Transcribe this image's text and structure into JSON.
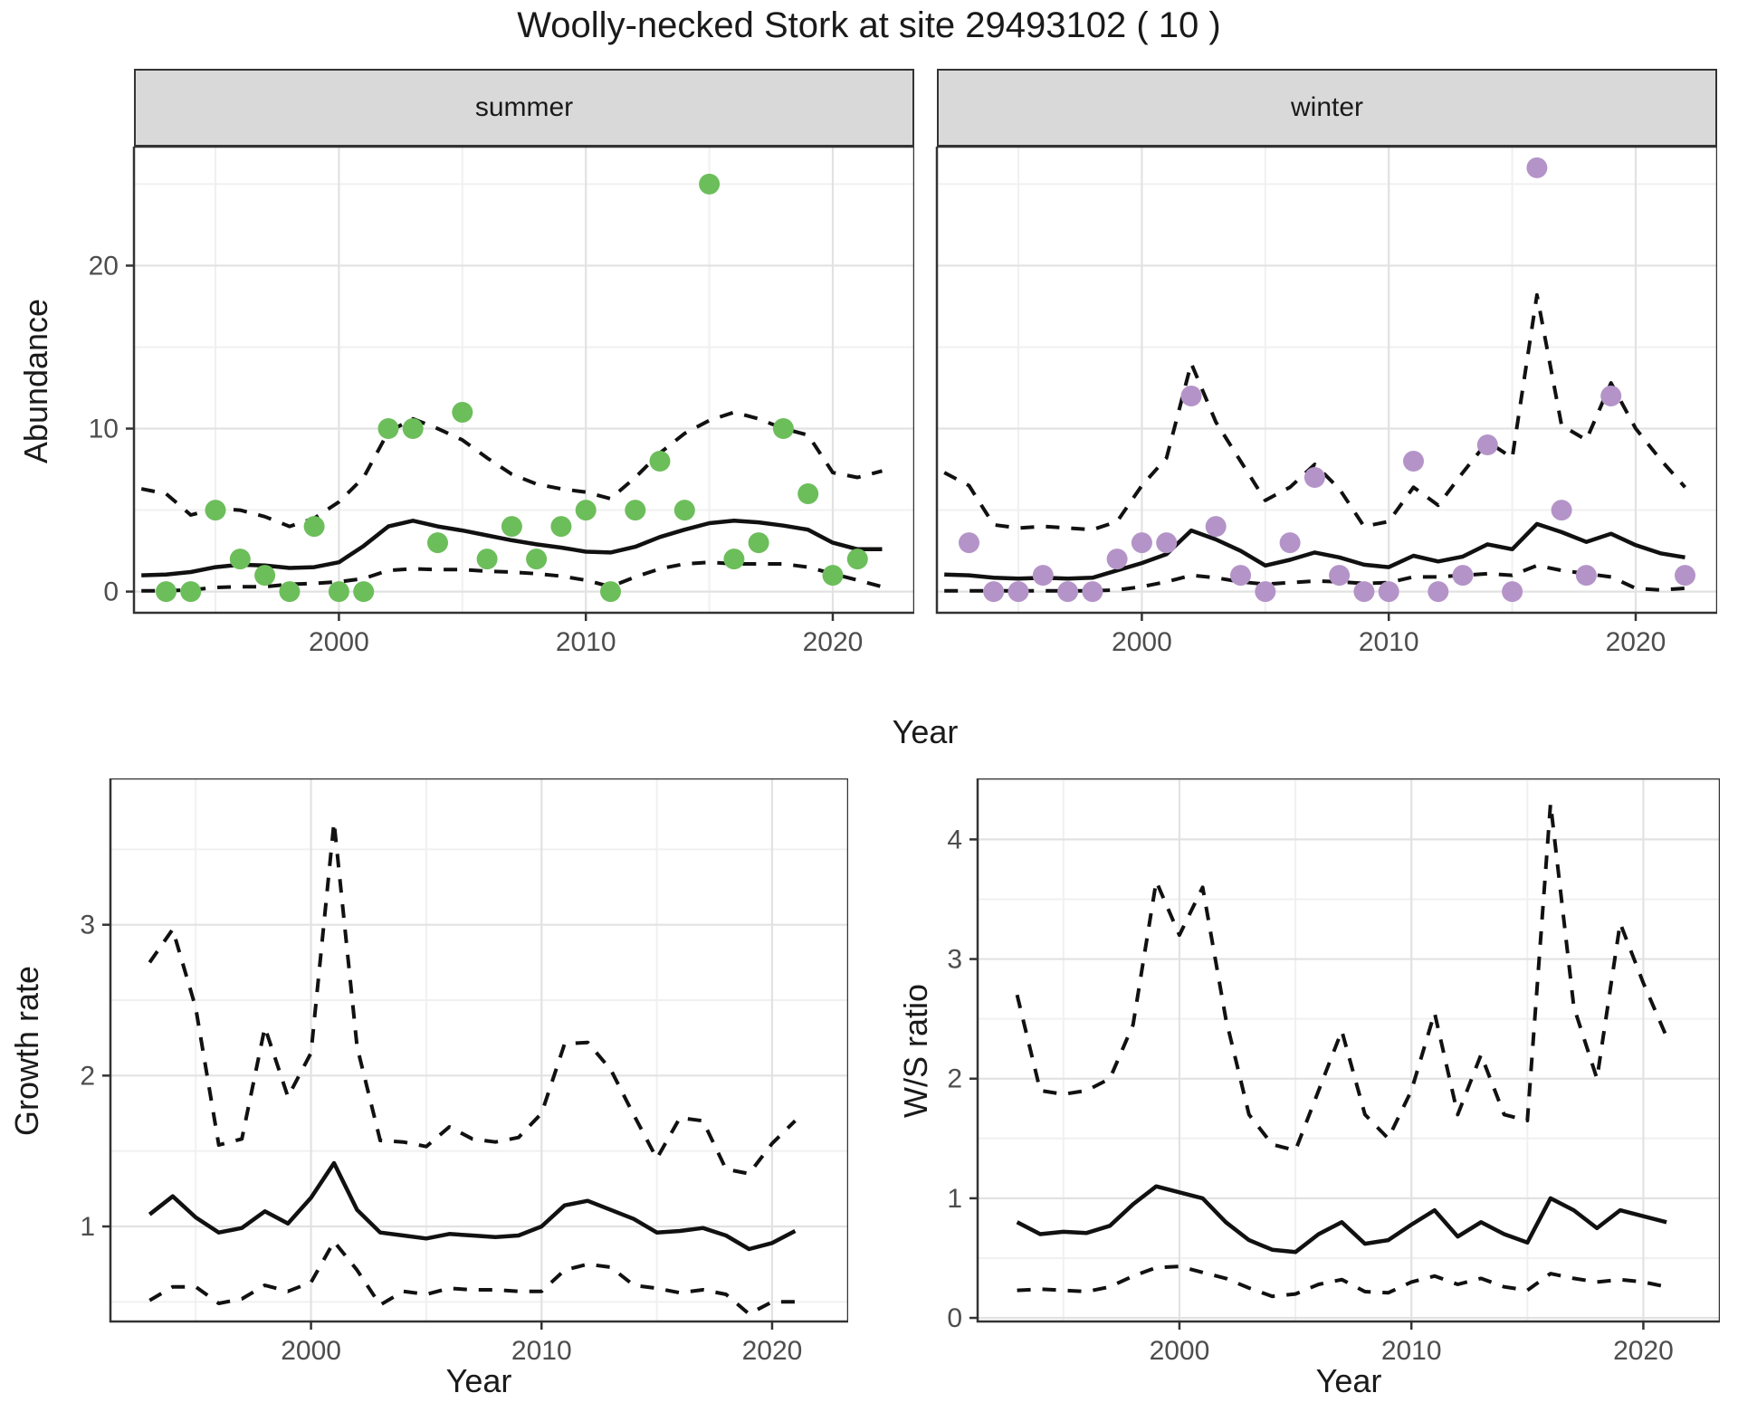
{
  "title": "Woolly-necked Stork at site 29493102 ( 10 )",
  "labels": {
    "x_axis": "Year",
    "abundance_y": "Abundance",
    "growth_y": "Growth rate",
    "ws_y": "W/S ratio",
    "facet_summer": "summer",
    "facet_winter": "winter"
  },
  "colors": {
    "summer_point": "#6CBE5A",
    "winter_point": "#B494C8",
    "line": "#111111",
    "grid_major": "#E2E2E2",
    "grid_minor": "#F0F0F0",
    "panel_border": "#333333",
    "tick_text": "#4D4D4D",
    "tick_mark": "#333333"
  },
  "chart_data": [
    {
      "type": "line",
      "panel": "summer",
      "facet": "summer",
      "xlabel": "Year",
      "ylabel": "Abundance",
      "xlim": [
        1991.7,
        2023.3
      ],
      "ylim": [
        -1.3,
        27.3
      ],
      "x_ticks": [
        2000,
        2010,
        2020
      ],
      "x_minor": [
        1995,
        2005,
        2015
      ],
      "y_ticks": [
        0,
        10,
        20
      ],
      "y_minor": [
        5,
        15,
        25
      ],
      "line_years": [
        1992,
        1993,
        1994,
        1995,
        1996,
        1997,
        1998,
        1999,
        2000,
        2001,
        2002,
        2003,
        2004,
        2005,
        2006,
        2007,
        2008,
        2009,
        2010,
        2011,
        2012,
        2013,
        2014,
        2015,
        2016,
        2017,
        2018,
        2019,
        2020,
        2021,
        2022
      ],
      "series": [
        {
          "name": "upper95",
          "style": "dashed",
          "values": [
            6.3,
            6.0,
            4.7,
            5.1,
            5.0,
            4.6,
            4.0,
            4.5,
            5.5,
            7.0,
            9.8,
            10.6,
            10.0,
            9.3,
            8.2,
            7.2,
            6.6,
            6.3,
            6.1,
            5.7,
            7.0,
            8.5,
            9.7,
            10.5,
            11.0,
            10.6,
            10.0,
            9.6,
            7.3,
            7.0,
            7.4
          ]
        },
        {
          "name": "mean",
          "style": "solid",
          "values": [
            1.0,
            1.05,
            1.2,
            1.5,
            1.65,
            1.6,
            1.45,
            1.5,
            1.8,
            2.8,
            4.0,
            4.35,
            4.0,
            3.75,
            3.45,
            3.15,
            2.9,
            2.7,
            2.45,
            2.4,
            2.75,
            3.35,
            3.8,
            4.2,
            4.35,
            4.25,
            4.05,
            3.8,
            3.0,
            2.6,
            2.6
          ]
        },
        {
          "name": "lower95",
          "style": "dashed",
          "values": [
            0.05,
            0.05,
            0.1,
            0.25,
            0.3,
            0.3,
            0.45,
            0.5,
            0.6,
            0.8,
            1.3,
            1.4,
            1.35,
            1.35,
            1.25,
            1.2,
            1.1,
            0.95,
            0.7,
            0.3,
            0.9,
            1.4,
            1.7,
            1.8,
            1.7,
            1.7,
            1.7,
            1.5,
            1.1,
            0.7,
            0.3
          ]
        }
      ],
      "points": {
        "color_key": "summer_point",
        "years": [
          1993,
          1994,
          1995,
          1996,
          1997,
          1998,
          1999,
          2000,
          2001,
          2002,
          2003,
          2004,
          2005,
          2006,
          2007,
          2008,
          2009,
          2010,
          2011,
          2012,
          2013,
          2014,
          2015,
          2016,
          2017,
          2018,
          2019,
          2020,
          2021
        ],
        "values": [
          0,
          0,
          5,
          2,
          1,
          0,
          4,
          0,
          0,
          10,
          10,
          3,
          11,
          2,
          4,
          2,
          4,
          5,
          0,
          5,
          8,
          5,
          25,
          2,
          3,
          10,
          6,
          1,
          2
        ]
      }
    },
    {
      "type": "line",
      "panel": "winter",
      "facet": "winter",
      "xlabel": "Year",
      "ylabel": "Abundance",
      "xlim": [
        1991.7,
        2023.3
      ],
      "ylim": [
        -1.3,
        27.3
      ],
      "x_ticks": [
        2000,
        2010,
        2020
      ],
      "x_minor": [
        1995,
        2005,
        2015
      ],
      "y_ticks": [
        0,
        10,
        20
      ],
      "y_minor": [
        5,
        15,
        25
      ],
      "line_years": [
        1992,
        1993,
        1994,
        1995,
        1996,
        1997,
        1998,
        1999,
        2000,
        2001,
        2002,
        2003,
        2004,
        2005,
        2006,
        2007,
        2008,
        2009,
        2010,
        2011,
        2012,
        2013,
        2014,
        2015,
        2016,
        2017,
        2018,
        2019,
        2020,
        2021,
        2022
      ],
      "series": [
        {
          "name": "upper95",
          "style": "dashed",
          "values": [
            7.3,
            6.5,
            4.1,
            3.9,
            4.0,
            3.9,
            3.8,
            4.3,
            6.5,
            8.2,
            14.0,
            10.4,
            8.0,
            5.6,
            6.4,
            7.8,
            6.3,
            4.0,
            4.3,
            6.4,
            5.3,
            7.3,
            9.2,
            8.2,
            18.2,
            10.2,
            9.3,
            12.8,
            10.0,
            8.1,
            6.4
          ]
        },
        {
          "name": "mean",
          "style": "solid",
          "values": [
            1.05,
            1.0,
            0.85,
            0.8,
            0.85,
            0.8,
            0.85,
            1.3,
            1.75,
            2.3,
            3.75,
            3.2,
            2.5,
            1.6,
            1.95,
            2.4,
            2.1,
            1.65,
            1.5,
            2.2,
            1.85,
            2.15,
            2.9,
            2.6,
            4.15,
            3.65,
            3.05,
            3.55,
            2.85,
            2.35,
            2.1
          ]
        },
        {
          "name": "lower95",
          "style": "dashed",
          "values": [
            0.05,
            0.05,
            0.05,
            0.05,
            0.05,
            0.05,
            0.05,
            0.1,
            0.3,
            0.6,
            1.0,
            0.85,
            0.6,
            0.45,
            0.55,
            0.65,
            0.6,
            0.5,
            0.55,
            0.9,
            0.9,
            1.0,
            1.1,
            1.0,
            1.6,
            1.3,
            1.1,
            0.9,
            0.2,
            0.1,
            0.2
          ]
        }
      ],
      "points": {
        "color_key": "winter_point",
        "years": [
          1993,
          1994,
          1995,
          1996,
          1997,
          1998,
          1999,
          2000,
          2001,
          2002,
          2003,
          2004,
          2005,
          2006,
          2007,
          2008,
          2009,
          2010,
          2011,
          2012,
          2013,
          2014,
          2015,
          2016,
          2017,
          2018,
          2019,
          2022
        ],
        "values": [
          3,
          0,
          0,
          1,
          0,
          0,
          2,
          3,
          3,
          12,
          4,
          1,
          0,
          3,
          7,
          1,
          0,
          0,
          8,
          0,
          1,
          9,
          0,
          26,
          5,
          1,
          12,
          1
        ]
      }
    },
    {
      "type": "line",
      "panel": "growth",
      "xlabel": "Year",
      "ylabel": "Growth rate",
      "xlim": [
        1991.3,
        2023.3
      ],
      "ylim": [
        0.37,
        3.97
      ],
      "x_ticks": [
        2000,
        2010,
        2020
      ],
      "x_minor": [
        1995,
        2005,
        2015
      ],
      "y_ticks": [
        1,
        2,
        3
      ],
      "y_minor": [
        0.5,
        1.5,
        2.5,
        3.5
      ],
      "line_years": [
        1993,
        1994,
        1995,
        1996,
        1997,
        1998,
        1999,
        2000,
        2001,
        2002,
        2003,
        2004,
        2005,
        2006,
        2007,
        2008,
        2009,
        2010,
        2011,
        2012,
        2013,
        2014,
        2015,
        2016,
        2017,
        2018,
        2019,
        2020,
        2021
      ],
      "series": [
        {
          "name": "upper95",
          "style": "dashed",
          "values": [
            2.75,
            2.97,
            2.45,
            1.54,
            1.58,
            2.32,
            1.86,
            2.15,
            3.68,
            2.19,
            1.57,
            1.56,
            1.53,
            1.66,
            1.58,
            1.56,
            1.59,
            1.75,
            2.21,
            2.22,
            2.04,
            1.74,
            1.45,
            1.72,
            1.7,
            1.38,
            1.35,
            1.55,
            1.7
          ]
        },
        {
          "name": "mean",
          "style": "solid",
          "values": [
            1.08,
            1.2,
            1.06,
            0.96,
            0.99,
            1.1,
            1.02,
            1.19,
            1.42,
            1.11,
            0.96,
            0.94,
            0.92,
            0.95,
            0.94,
            0.93,
            0.94,
            1.0,
            1.14,
            1.17,
            1.11,
            1.05,
            0.96,
            0.97,
            0.99,
            0.94,
            0.85,
            0.89,
            0.97
          ]
        },
        {
          "name": "lower95",
          "style": "dashed",
          "values": [
            0.51,
            0.6,
            0.6,
            0.49,
            0.52,
            0.61,
            0.57,
            0.63,
            0.9,
            0.71,
            0.48,
            0.57,
            0.55,
            0.59,
            0.58,
            0.58,
            0.57,
            0.57,
            0.71,
            0.75,
            0.73,
            0.61,
            0.59,
            0.56,
            0.58,
            0.55,
            0.42,
            0.5,
            0.5
          ]
        }
      ]
    },
    {
      "type": "line",
      "panel": "ws",
      "xlabel": "Year",
      "ylabel": "W/S ratio",
      "xlim": [
        1991.3,
        2023.3
      ],
      "ylim": [
        -0.03,
        4.51
      ],
      "x_ticks": [
        2000,
        2010,
        2020
      ],
      "x_minor": [
        1995,
        2005,
        2015
      ],
      "y_ticks": [
        0,
        1,
        2,
        3,
        4
      ],
      "y_minor": [
        0.5,
        1.5,
        2.5,
        3.5,
        4.5
      ],
      "line_years": [
        1993,
        1994,
        1995,
        1996,
        1997,
        1998,
        1999,
        2000,
        2001,
        2002,
        2003,
        2004,
        2005,
        2006,
        2007,
        2008,
        2009,
        2010,
        2011,
        2012,
        2013,
        2014,
        2015,
        2016,
        2017,
        2018,
        2019,
        2020,
        2021
      ],
      "series": [
        {
          "name": "upper95",
          "style": "dashed",
          "values": [
            2.7,
            1.9,
            1.87,
            1.9,
            2.0,
            2.45,
            3.65,
            3.2,
            3.6,
            2.5,
            1.7,
            1.45,
            1.4,
            1.9,
            2.4,
            1.7,
            1.5,
            1.9,
            2.55,
            1.7,
            2.2,
            1.7,
            1.65,
            4.3,
            2.6,
            2.0,
            3.3,
            2.8,
            2.35
          ]
        },
        {
          "name": "mean",
          "style": "solid",
          "values": [
            0.8,
            0.7,
            0.72,
            0.71,
            0.77,
            0.95,
            1.1,
            1.05,
            1.0,
            0.8,
            0.65,
            0.57,
            0.55,
            0.7,
            0.8,
            0.62,
            0.65,
            0.78,
            0.9,
            0.68,
            0.8,
            0.7,
            0.63,
            1.0,
            0.9,
            0.75,
            0.9,
            0.85,
            0.8
          ]
        },
        {
          "name": "lower95",
          "style": "dashed",
          "values": [
            0.23,
            0.24,
            0.23,
            0.22,
            0.26,
            0.35,
            0.42,
            0.43,
            0.38,
            0.33,
            0.25,
            0.18,
            0.2,
            0.28,
            0.32,
            0.22,
            0.21,
            0.3,
            0.35,
            0.28,
            0.33,
            0.26,
            0.23,
            0.37,
            0.33,
            0.3,
            0.32,
            0.3,
            0.26
          ]
        }
      ]
    }
  ]
}
